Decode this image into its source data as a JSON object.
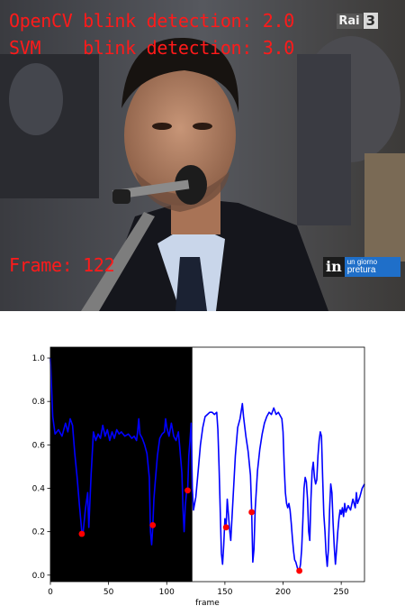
{
  "video": {
    "overlay": {
      "opencv_line": "OpenCV blink detection: 2.0",
      "svm_line": "SVM    blink detection: 3.0",
      "frame_line": "Frame: 122",
      "color": "#ff1a1a"
    },
    "channel_logo": {
      "text": "Rai",
      "number": "3"
    },
    "show_logo": {
      "mark": "in",
      "line1": "un giorno",
      "line2": "pretura"
    }
  },
  "chart_data": {
    "type": "line",
    "title": "",
    "xlabel": "frame",
    "ylabel": "",
    "xlim": [
      0,
      270
    ],
    "ylim": [
      -0.03,
      1.05
    ],
    "x_ticks": [
      0,
      50,
      100,
      150,
      200,
      250
    ],
    "y_ticks": [
      0.0,
      0.2,
      0.4,
      0.6,
      0.8,
      1.0
    ],
    "grid": false,
    "shaded_region": {
      "x_start": 0,
      "x_end": 122,
      "color": "#000000"
    },
    "series": [
      {
        "color": "#0000ff",
        "points": [
          [
            0,
            1.0
          ],
          [
            2,
            0.73
          ],
          [
            4,
            0.65
          ],
          [
            7,
            0.67
          ],
          [
            10,
            0.64
          ],
          [
            13,
            0.7
          ],
          [
            15,
            0.66
          ],
          [
            17,
            0.72
          ],
          [
            19,
            0.69
          ],
          [
            21,
            0.56
          ],
          [
            23,
            0.45
          ],
          [
            25,
            0.32
          ],
          [
            27,
            0.2
          ],
          [
            28,
            0.19
          ],
          [
            30,
            0.3
          ],
          [
            32,
            0.38
          ],
          [
            33,
            0.22
          ],
          [
            35,
            0.46
          ],
          [
            37,
            0.66
          ],
          [
            39,
            0.62
          ],
          [
            41,
            0.65
          ],
          [
            43,
            0.63
          ],
          [
            45,
            0.69
          ],
          [
            47,
            0.64
          ],
          [
            49,
            0.67
          ],
          [
            51,
            0.62
          ],
          [
            53,
            0.66
          ],
          [
            55,
            0.63
          ],
          [
            57,
            0.67
          ],
          [
            59,
            0.65
          ],
          [
            61,
            0.66
          ],
          [
            64,
            0.64
          ],
          [
            67,
            0.65
          ],
          [
            70,
            0.63
          ],
          [
            72,
            0.64
          ],
          [
            74,
            0.62
          ],
          [
            75,
            0.66
          ],
          [
            76,
            0.72
          ],
          [
            77,
            0.65
          ],
          [
            79,
            0.63
          ],
          [
            81,
            0.6
          ],
          [
            83,
            0.56
          ],
          [
            85,
            0.45
          ],
          [
            86,
            0.2
          ],
          [
            87,
            0.14
          ],
          [
            88,
            0.22
          ],
          [
            89,
            0.35
          ],
          [
            90,
            0.42
          ],
          [
            92,
            0.55
          ],
          [
            94,
            0.63
          ],
          [
            96,
            0.65
          ],
          [
            98,
            0.66
          ],
          [
            99,
            0.72
          ],
          [
            100,
            0.68
          ],
          [
            102,
            0.64
          ],
          [
            104,
            0.7
          ],
          [
            106,
            0.64
          ],
          [
            108,
            0.62
          ],
          [
            110,
            0.66
          ],
          [
            111,
            0.6
          ],
          [
            113,
            0.47
          ],
          [
            114,
            0.3
          ],
          [
            115,
            0.2
          ],
          [
            116,
            0.32
          ],
          [
            117,
            0.38
          ],
          [
            118,
            0.39
          ],
          [
            119,
            0.55
          ],
          [
            120,
            0.62
          ],
          [
            121,
            0.7
          ],
          [
            122,
            0.4
          ],
          [
            123,
            0.3
          ],
          [
            124,
            0.33
          ],
          [
            125,
            0.36
          ],
          [
            127,
            0.48
          ],
          [
            129,
            0.6
          ],
          [
            131,
            0.68
          ],
          [
            133,
            0.73
          ],
          [
            135,
            0.74
          ],
          [
            137,
            0.75
          ],
          [
            139,
            0.75
          ],
          [
            141,
            0.74
          ],
          [
            143,
            0.75
          ],
          [
            144,
            0.67
          ],
          [
            145,
            0.5
          ],
          [
            146,
            0.3
          ],
          [
            147,
            0.1
          ],
          [
            148,
            0.05
          ],
          [
            149,
            0.14
          ],
          [
            150,
            0.26
          ],
          [
            151,
            0.22
          ],
          [
            152,
            0.35
          ],
          [
            153,
            0.28
          ],
          [
            154,
            0.21
          ],
          [
            155,
            0.16
          ],
          [
            157,
            0.35
          ],
          [
            159,
            0.55
          ],
          [
            161,
            0.68
          ],
          [
            163,
            0.72
          ],
          [
            165,
            0.79
          ],
          [
            166,
            0.73
          ],
          [
            168,
            0.64
          ],
          [
            170,
            0.57
          ],
          [
            172,
            0.46
          ],
          [
            173,
            0.3
          ],
          [
            174,
            0.06
          ],
          [
            175,
            0.12
          ],
          [
            176,
            0.3
          ],
          [
            178,
            0.48
          ],
          [
            180,
            0.58
          ],
          [
            182,
            0.65
          ],
          [
            184,
            0.7
          ],
          [
            186,
            0.73
          ],
          [
            188,
            0.75
          ],
          [
            190,
            0.74
          ],
          [
            192,
            0.77
          ],
          [
            194,
            0.74
          ],
          [
            196,
            0.75
          ],
          [
            198,
            0.73
          ],
          [
            199,
            0.72
          ],
          [
            200,
            0.66
          ],
          [
            201,
            0.5
          ],
          [
            202,
            0.38
          ],
          [
            203,
            0.33
          ],
          [
            204,
            0.31
          ],
          [
            205,
            0.33
          ],
          [
            206,
            0.3
          ],
          [
            207,
            0.24
          ],
          [
            208,
            0.17
          ],
          [
            209,
            0.11
          ],
          [
            210,
            0.07
          ],
          [
            211,
            0.06
          ],
          [
            212,
            0.04
          ],
          [
            213,
            0.02
          ],
          [
            214,
            0.02
          ],
          [
            215,
            0.05
          ],
          [
            216,
            0.12
          ],
          [
            217,
            0.25
          ],
          [
            218,
            0.4
          ],
          [
            219,
            0.45
          ],
          [
            220,
            0.43
          ],
          [
            221,
            0.35
          ],
          [
            222,
            0.2
          ],
          [
            223,
            0.16
          ],
          [
            224,
            0.35
          ],
          [
            225,
            0.48
          ],
          [
            226,
            0.52
          ],
          [
            227,
            0.45
          ],
          [
            228,
            0.42
          ],
          [
            229,
            0.44
          ],
          [
            230,
            0.55
          ],
          [
            231,
            0.62
          ],
          [
            232,
            0.66
          ],
          [
            233,
            0.64
          ],
          [
            234,
            0.45
          ],
          [
            235,
            0.28
          ],
          [
            236,
            0.2
          ],
          [
            237,
            0.1
          ],
          [
            238,
            0.04
          ],
          [
            239,
            0.12
          ],
          [
            240,
            0.3
          ],
          [
            241,
            0.42
          ],
          [
            242,
            0.38
          ],
          [
            243,
            0.24
          ],
          [
            244,
            0.13
          ],
          [
            245,
            0.05
          ],
          [
            246,
            0.12
          ],
          [
            247,
            0.2
          ],
          [
            248,
            0.26
          ],
          [
            249,
            0.3
          ],
          [
            250,
            0.28
          ],
          [
            251,
            0.31
          ],
          [
            252,
            0.27
          ],
          [
            253,
            0.33
          ],
          [
            254,
            0.29
          ],
          [
            256,
            0.32
          ],
          [
            258,
            0.3
          ],
          [
            260,
            0.35
          ],
          [
            262,
            0.31
          ],
          [
            263,
            0.38
          ],
          [
            264,
            0.33
          ],
          [
            266,
            0.36
          ],
          [
            268,
            0.4
          ],
          [
            270,
            0.42
          ]
        ]
      }
    ],
    "markers": {
      "color": "#ff0000",
      "points": [
        [
          27,
          0.19
        ],
        [
          88,
          0.23
        ],
        [
          118,
          0.39
        ],
        [
          151,
          0.22
        ],
        [
          173,
          0.29
        ],
        [
          214,
          0.02
        ]
      ]
    }
  }
}
